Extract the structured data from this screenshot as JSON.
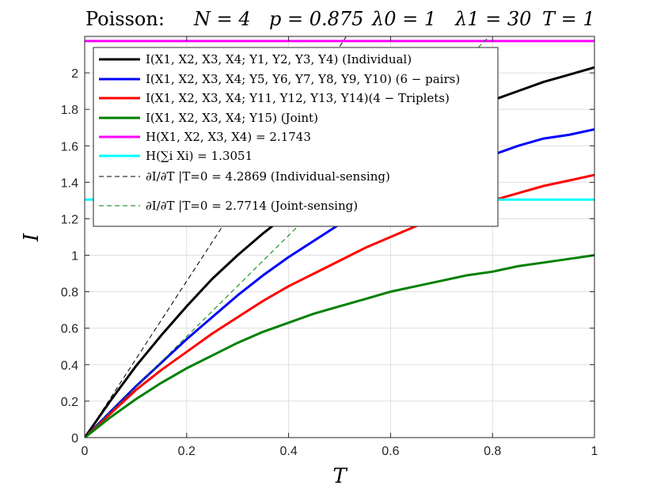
{
  "chart_data": {
    "type": "line",
    "title": {
      "prefix": "Poisson:",
      "params": [
        "N = 4",
        "p = 0.875",
        "λ0 = 1",
        "λ1 = 30",
        "T = 1"
      ]
    },
    "xlabel": "T",
    "ylabel": "I",
    "xlim": [
      0,
      1
    ],
    "ylim": [
      0,
      2.2
    ],
    "xticks": [
      0,
      0.2,
      0.4,
      0.6,
      0.8,
      1
    ],
    "xtick_labels": [
      "0",
      "0.2",
      "0.4",
      "0.6",
      "0.8",
      "1"
    ],
    "yticks": [
      0,
      0.2,
      0.4,
      0.6,
      0.8,
      1,
      1.2,
      1.4,
      1.6,
      1.8,
      2
    ],
    "ytick_labels": [
      "0",
      "0.2",
      "0.4",
      "0.6",
      "0.8",
      "1",
      "1.2",
      "1.4",
      "1.6",
      "1.8",
      "2"
    ],
    "grid": true,
    "legend_position": "top-left",
    "series": [
      {
        "name": "I(X1, X2, X3, X4; Y1, Y2, Y3, Y4)   (Individual)",
        "color": "#000000",
        "style": "solid",
        "x": [
          0,
          0.05,
          0.1,
          0.15,
          0.2,
          0.25,
          0.3,
          0.35,
          0.4,
          0.45,
          0.5,
          0.55,
          0.6,
          0.65,
          0.7,
          0.75,
          0.8,
          0.85,
          0.9,
          0.95,
          1
        ],
        "y": [
          0,
          0.2,
          0.39,
          0.56,
          0.72,
          0.87,
          1.0,
          1.12,
          1.23,
          1.33,
          1.42,
          1.51,
          1.59,
          1.66,
          1.73,
          1.79,
          1.85,
          1.9,
          1.95,
          1.99,
          2.03
        ]
      },
      {
        "name": "I(X1, X2, X3, X4; Y5, Y6, Y7, Y8, Y9, Y10)   (6 − pairs)",
        "color": "#0000ff",
        "style": "solid",
        "x": [
          0,
          0.05,
          0.1,
          0.15,
          0.2,
          0.25,
          0.3,
          0.35,
          0.4,
          0.45,
          0.5,
          0.55,
          0.6,
          0.65,
          0.7,
          0.75,
          0.8,
          0.85,
          0.9,
          0.95,
          1
        ],
        "y": [
          0,
          0.14,
          0.28,
          0.41,
          0.54,
          0.66,
          0.78,
          0.89,
          0.99,
          1.08,
          1.17,
          1.25,
          1.32,
          1.38,
          1.44,
          1.5,
          1.55,
          1.6,
          1.64,
          1.66,
          1.69
        ]
      },
      {
        "name": "I(X1, X2, X3, X4; Y11, Y12, Y13, Y14)(4 − Triplets)",
        "color": "#ff0000",
        "style": "solid",
        "x": [
          0,
          0.05,
          0.1,
          0.15,
          0.2,
          0.25,
          0.3,
          0.35,
          0.4,
          0.45,
          0.5,
          0.55,
          0.6,
          0.65,
          0.7,
          0.75,
          0.8,
          0.85,
          0.9,
          0.95,
          1
        ],
        "y": [
          0,
          0.13,
          0.26,
          0.37,
          0.47,
          0.57,
          0.66,
          0.75,
          0.83,
          0.9,
          0.97,
          1.04,
          1.1,
          1.16,
          1.21,
          1.26,
          1.3,
          1.34,
          1.38,
          1.41,
          1.44
        ]
      },
      {
        "name": "I(X1, X2, X3, X4; Y15)   (Joint)",
        "color": "#008000",
        "style": "solid",
        "x": [
          0,
          0.05,
          0.1,
          0.15,
          0.2,
          0.25,
          0.3,
          0.35,
          0.4,
          0.45,
          0.5,
          0.55,
          0.6,
          0.65,
          0.7,
          0.75,
          0.8,
          0.85,
          0.9,
          0.95,
          1
        ],
        "y": [
          0,
          0.11,
          0.21,
          0.3,
          0.38,
          0.45,
          0.52,
          0.58,
          0.63,
          0.68,
          0.72,
          0.76,
          0.8,
          0.83,
          0.86,
          0.89,
          0.91,
          0.94,
          0.96,
          0.98,
          1.0
        ]
      },
      {
        "name": "H(X1, X2, X3, X4) = 2.1743",
        "color": "#ff00ff",
        "style": "solid",
        "x": [
          0,
          1
        ],
        "y": [
          2.1743,
          2.1743
        ]
      },
      {
        "name": "H(∑i Xi) = 1.3051",
        "color": "#00ffff",
        "style": "solid",
        "x": [
          0,
          1
        ],
        "y": [
          1.3051,
          1.3051
        ]
      },
      {
        "name": "∂I/∂T |T=0 = 4.2869 (Individual-sensing)",
        "color": "#000000",
        "style": "dashed",
        "x": [
          0,
          0.5132
        ],
        "y": [
          0,
          2.2
        ]
      },
      {
        "name": "∂I/∂T |T=0 = 2.7714 (Joint-sensing)",
        "color": "#008000",
        "style": "dashed",
        "x": [
          0,
          0.7938
        ],
        "y": [
          0,
          2.2
        ]
      }
    ]
  }
}
